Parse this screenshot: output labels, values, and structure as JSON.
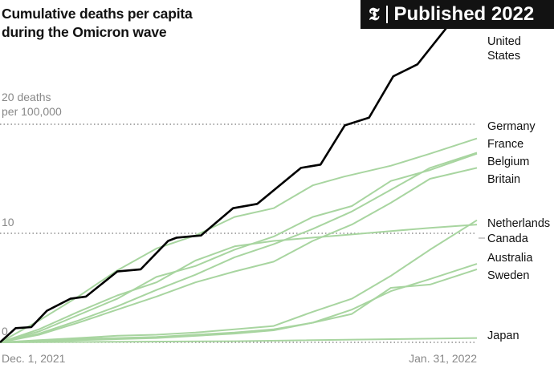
{
  "chart_data": {
    "type": "line",
    "title": "Cumulative deaths per capita during the Omicron wave",
    "title_lines": [
      "Cumulative deaths per capita",
      "during the Omicron wave"
    ],
    "ylabel_lines": [
      "20 deaths",
      "per 100,000"
    ],
    "yticks": [
      {
        "value": 0,
        "label": "0"
      },
      {
        "value": 10,
        "label": "10"
      },
      {
        "value": 20,
        "label": "20 deaths"
      }
    ],
    "ylim": [
      0,
      31
    ],
    "xlim": [
      0,
      61
    ],
    "xticks": [
      {
        "day": 0,
        "label": "Dec. 1, 2021"
      },
      {
        "day": 61,
        "label": "Jan. 31, 2022"
      }
    ],
    "x_unit": "days since Dec. 1, 2021",
    "highlight_color": "#000000",
    "other_color": "#a8d5a0",
    "series": [
      {
        "name": "United States",
        "label_lines": [
          "United",
          "States"
        ],
        "highlight": true,
        "points": [
          [
            0,
            0
          ],
          [
            2,
            1.3
          ],
          [
            4,
            1.4
          ],
          [
            6,
            2.9
          ],
          [
            9,
            4
          ],
          [
            11,
            4.2
          ],
          [
            15,
            6.5
          ],
          [
            18,
            6.7
          ],
          [
            21.5,
            9.3
          ],
          [
            22.6,
            9.6
          ],
          [
            25.7,
            9.8
          ],
          [
            29.8,
            12.3
          ],
          [
            32.9,
            12.7
          ],
          [
            38.5,
            16
          ],
          [
            41,
            16.3
          ],
          [
            44.1,
            19.9
          ],
          [
            47.2,
            20.6
          ],
          [
            50.3,
            24.4
          ],
          [
            53.4,
            25.5
          ],
          [
            57.5,
            29.2
          ],
          [
            61,
            31.4
          ]
        ]
      },
      {
        "name": "Germany",
        "points": [
          [
            0,
            0
          ],
          [
            5,
            2
          ],
          [
            10,
            4.2
          ],
          [
            15,
            6.6
          ],
          [
            20,
            8.6
          ],
          [
            25,
            9.8
          ],
          [
            30,
            11.5
          ],
          [
            35,
            12.3
          ],
          [
            40,
            14.4
          ],
          [
            44,
            15.2
          ],
          [
            50,
            16.2
          ],
          [
            55,
            17.3
          ],
          [
            61,
            18.7
          ]
        ]
      },
      {
        "name": "France",
        "points": [
          [
            0,
            0
          ],
          [
            5,
            1
          ],
          [
            10,
            2.5
          ],
          [
            15,
            4
          ],
          [
            20,
            6
          ],
          [
            25,
            7
          ],
          [
            30,
            8.5
          ],
          [
            35,
            9.7
          ],
          [
            40,
            11.5
          ],
          [
            45,
            12.5
          ],
          [
            50,
            14.8
          ],
          [
            55,
            15.8
          ],
          [
            61,
            17.3
          ]
        ]
      },
      {
        "name": "Belgium",
        "points": [
          [
            0,
            0
          ],
          [
            5,
            0.8
          ],
          [
            10,
            2
          ],
          [
            15,
            3.3
          ],
          [
            20,
            4.8
          ],
          [
            25,
            6.2
          ],
          [
            30,
            7.8
          ],
          [
            35,
            9
          ],
          [
            40,
            10.4
          ],
          [
            45,
            12
          ],
          [
            50,
            14
          ],
          [
            55,
            16
          ],
          [
            61,
            17.4
          ]
        ]
      },
      {
        "name": "Britain",
        "points": [
          [
            0,
            0
          ],
          [
            5,
            0.7
          ],
          [
            10,
            1.8
          ],
          [
            15,
            3
          ],
          [
            20,
            4.2
          ],
          [
            25,
            5.5
          ],
          [
            30,
            6.5
          ],
          [
            35,
            7.4
          ],
          [
            40,
            9.3
          ],
          [
            45,
            10.8
          ],
          [
            50,
            12.8
          ],
          [
            55,
            15
          ],
          [
            61,
            16
          ]
        ]
      },
      {
        "name": "Netherlands",
        "points": [
          [
            0,
            0
          ],
          [
            5,
            1.2
          ],
          [
            10,
            2.8
          ],
          [
            15,
            4.3
          ],
          [
            20,
            5.5
          ],
          [
            25,
            7.5
          ],
          [
            30,
            8.8
          ],
          [
            35,
            9.3
          ],
          [
            40,
            9.6
          ],
          [
            45,
            9.9
          ],
          [
            50,
            10.2
          ],
          [
            55,
            10.5
          ],
          [
            61,
            10.8
          ]
        ]
      },
      {
        "name": "Canada",
        "points": [
          [
            0,
            0
          ],
          [
            5,
            0.2
          ],
          [
            10,
            0.4
          ],
          [
            15,
            0.6
          ],
          [
            20,
            0.7
          ],
          [
            25,
            0.9
          ],
          [
            30,
            1.2
          ],
          [
            35,
            1.5
          ],
          [
            40,
            2.8
          ],
          [
            45,
            4
          ],
          [
            50,
            6.1
          ],
          [
            55,
            8.5
          ],
          [
            61,
            11.2
          ]
        ]
      },
      {
        "name": "Australia",
        "points": [
          [
            0,
            0
          ],
          [
            10,
            0.3
          ],
          [
            20,
            0.5
          ],
          [
            30,
            0.9
          ],
          [
            35,
            1.2
          ],
          [
            40,
            1.8
          ],
          [
            45,
            3
          ],
          [
            50,
            4.7
          ],
          [
            55,
            5.8
          ],
          [
            61,
            7.2
          ]
        ]
      },
      {
        "name": "Sweden",
        "points": [
          [
            0,
            0
          ],
          [
            10,
            0.2
          ],
          [
            20,
            0.4
          ],
          [
            30,
            0.8
          ],
          [
            35,
            1.1
          ],
          [
            40,
            1.8
          ],
          [
            45,
            2.6
          ],
          [
            50,
            5
          ],
          [
            55,
            5.3
          ],
          [
            61,
            6.7
          ]
        ]
      },
      {
        "name": "Japan",
        "points": [
          [
            0,
            0
          ],
          [
            30,
            0.1
          ],
          [
            61,
            0.4
          ]
        ]
      }
    ]
  },
  "badge": {
    "logo": "T",
    "text": "Published 2022"
  }
}
